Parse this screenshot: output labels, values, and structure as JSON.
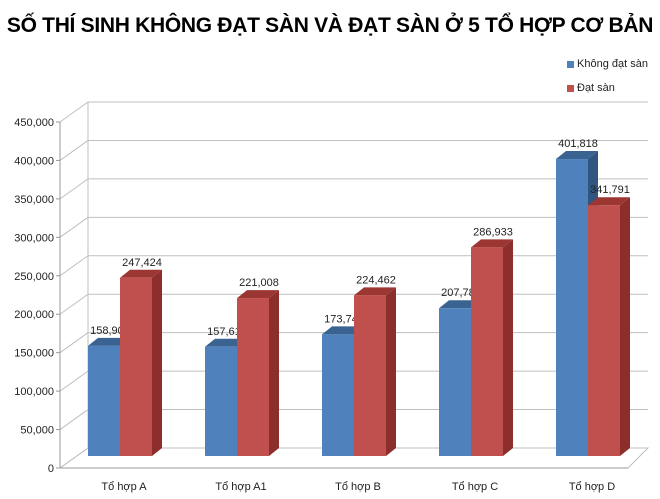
{
  "chart_data": {
    "type": "bar",
    "title": "SỐ THÍ SINH KHÔNG ĐẠT SÀN VÀ ĐẠT SÀN Ở 5 TỔ HỢP CƠ BẢN",
    "categories": [
      "Tổ hợp A",
      "Tổ hợp A1",
      "Tổ hợp B",
      "Tổ hợp C",
      "Tổ hợp D"
    ],
    "series": [
      {
        "name": "Không đạt sàn",
        "color": "#4F81BD",
        "values": [
          158902,
          157617,
          173747,
          207783,
          401818
        ]
      },
      {
        "name": "Đạt sàn",
        "color": "#C0504D",
        "values": [
          247424,
          221008,
          224462,
          286933,
          341791
        ]
      }
    ],
    "data_labels": [
      [
        "158,902",
        "157,617",
        "173,747",
        "207,783",
        "401,818"
      ],
      [
        "247,424",
        "221,008",
        "224,462",
        "286,933",
        "341,791"
      ]
    ],
    "xlabel": "",
    "ylabel": "",
    "ylim": [
      0,
      450000
    ],
    "yticks": [
      "0",
      "50,000",
      "100,000",
      "150,000",
      "200,000",
      "250,000",
      "300,000",
      "350,000",
      "400,000",
      "450,000"
    ],
    "grid": true,
    "legend_position": "top-right",
    "style": "3d-clustered-column"
  }
}
